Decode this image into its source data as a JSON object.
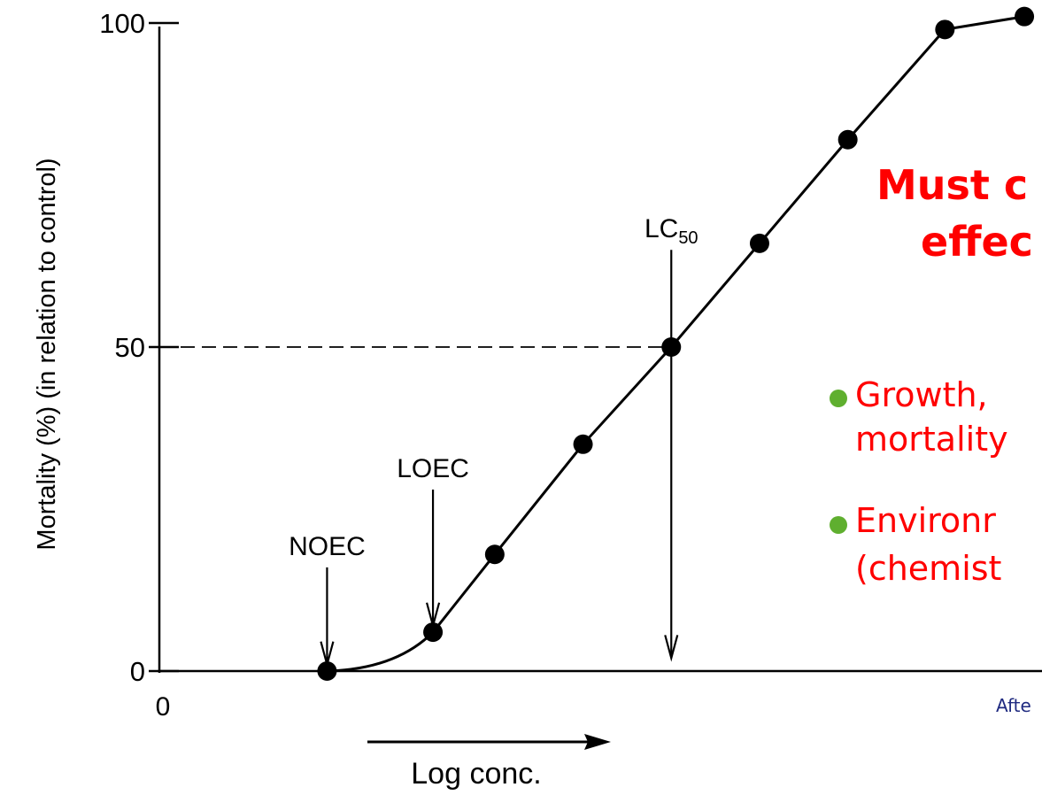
{
  "chart_data": {
    "type": "line",
    "ylabel": "Mortality (%) (in relation to control)",
    "xlabel": "Log conc.",
    "x_origin_label": "0",
    "y_ticks": [
      {
        "value": 0,
        "label": "0"
      },
      {
        "value": 50,
        "label": "50"
      },
      {
        "value": 100,
        "label": "100"
      }
    ],
    "ylim": [
      0,
      100
    ],
    "xlim": [
      0,
      10
    ],
    "grid": false,
    "series": [
      {
        "points": [
          {
            "x": 1.9,
            "y": 0
          },
          {
            "x": 3.1,
            "y": 6
          },
          {
            "x": 3.8,
            "y": 18
          },
          {
            "x": 4.8,
            "y": 35
          },
          {
            "x": 5.8,
            "y": 50
          },
          {
            "x": 6.8,
            "y": 66
          },
          {
            "x": 7.8,
            "y": 82
          },
          {
            "x": 8.9,
            "y": 99
          },
          {
            "x": 9.8,
            "y": 101
          }
        ]
      }
    ],
    "annotations": [
      {
        "label": "NOEC",
        "x": 1.9,
        "y_start": 16,
        "y_end": 1
      },
      {
        "label": "LOEC",
        "x": 3.1,
        "y_start": 28,
        "y_end": 7
      },
      {
        "label": "LC50",
        "label_main": "LC",
        "label_sub": "50",
        "x": 5.8,
        "y_start": 65,
        "y_end": 2
      }
    ],
    "reference_line": {
      "y": 50,
      "x_end": 5.8,
      "style": "dashed"
    }
  },
  "overlay": {
    "title_line1": "Must c",
    "title_line2": "effec",
    "bullets": [
      {
        "line1": "Growth, ",
        "line2": "mortality"
      },
      {
        "line1": "Environr",
        "line2": "(chemist"
      }
    ],
    "credit": "Afte",
    "colors": {
      "title": "#ff0000",
      "bullet_text": "#ff0000",
      "bullet_dot": "#5faf2f",
      "credit": "#1f2a80"
    }
  }
}
